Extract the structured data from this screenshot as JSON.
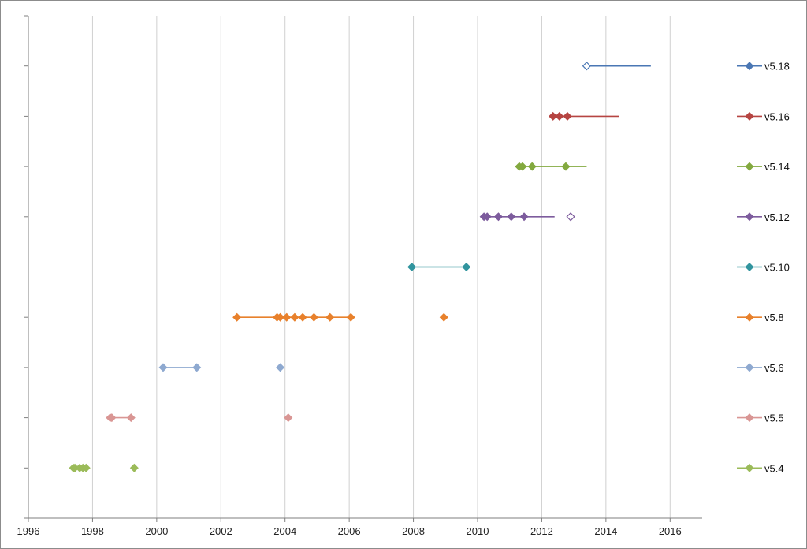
{
  "chart_data": {
    "type": "scatter",
    "xlim": [
      1996,
      2017
    ],
    "x_ticks": [
      "1996",
      "1998",
      "2000",
      "2002",
      "2004",
      "2006",
      "2008",
      "2010",
      "2012",
      "2014",
      "2016"
    ],
    "grid": "vertical",
    "legend_position": "right",
    "series": [
      {
        "name": "v5.4",
        "color": "#9BBB59",
        "line": [
          1997.4,
          1997.8
        ],
        "points": [
          1997.4,
          1997.45,
          1997.6,
          1997.7,
          1997.8,
          1999.3
        ],
        "hollow": []
      },
      {
        "name": "v5.5",
        "color": "#D99694",
        "line": [
          1998.55,
          1999.2
        ],
        "points": [
          1998.55,
          1998.6,
          1999.2,
          2004.1
        ],
        "hollow": []
      },
      {
        "name": "v5.6",
        "color": "#8EA9D0",
        "line": [
          2000.2,
          2001.25
        ],
        "points": [
          2000.2,
          2001.25,
          2003.85
        ],
        "hollow": []
      },
      {
        "name": "v5.8",
        "color": "#E8812C",
        "line": [
          2002.5,
          2006.05
        ],
        "points": [
          2002.5,
          2003.75,
          2003.85,
          2004.05,
          2004.3,
          2004.55,
          2004.9,
          2005.4,
          2006.05,
          2008.95
        ],
        "hollow": []
      },
      {
        "name": "v5.10",
        "color": "#31949E",
        "line": [
          2007.95,
          2009.65
        ],
        "points": [
          2007.95,
          2009.65
        ],
        "hollow": []
      },
      {
        "name": "v5.12",
        "color": "#7D5C9D",
        "line": [
          2010.2,
          2012.4
        ],
        "points": [
          2010.2,
          2010.3,
          2010.65,
          2011.05,
          2011.45
        ],
        "hollow": [
          2012.9
        ]
      },
      {
        "name": "v5.14",
        "color": "#83A93F",
        "line": [
          2011.3,
          2013.4
        ],
        "points": [
          2011.3,
          2011.4,
          2011.7,
          2012.75
        ],
        "hollow": []
      },
      {
        "name": "v5.16",
        "color": "#B64542",
        "line": [
          2012.35,
          2014.4
        ],
        "points": [
          2012.35,
          2012.55,
          2012.8
        ],
        "hollow": []
      },
      {
        "name": "v5.18",
        "color": "#4A77B4",
        "line": [
          2013.4,
          2015.4
        ],
        "points": [],
        "hollow": [
          2013.4
        ]
      }
    ]
  }
}
